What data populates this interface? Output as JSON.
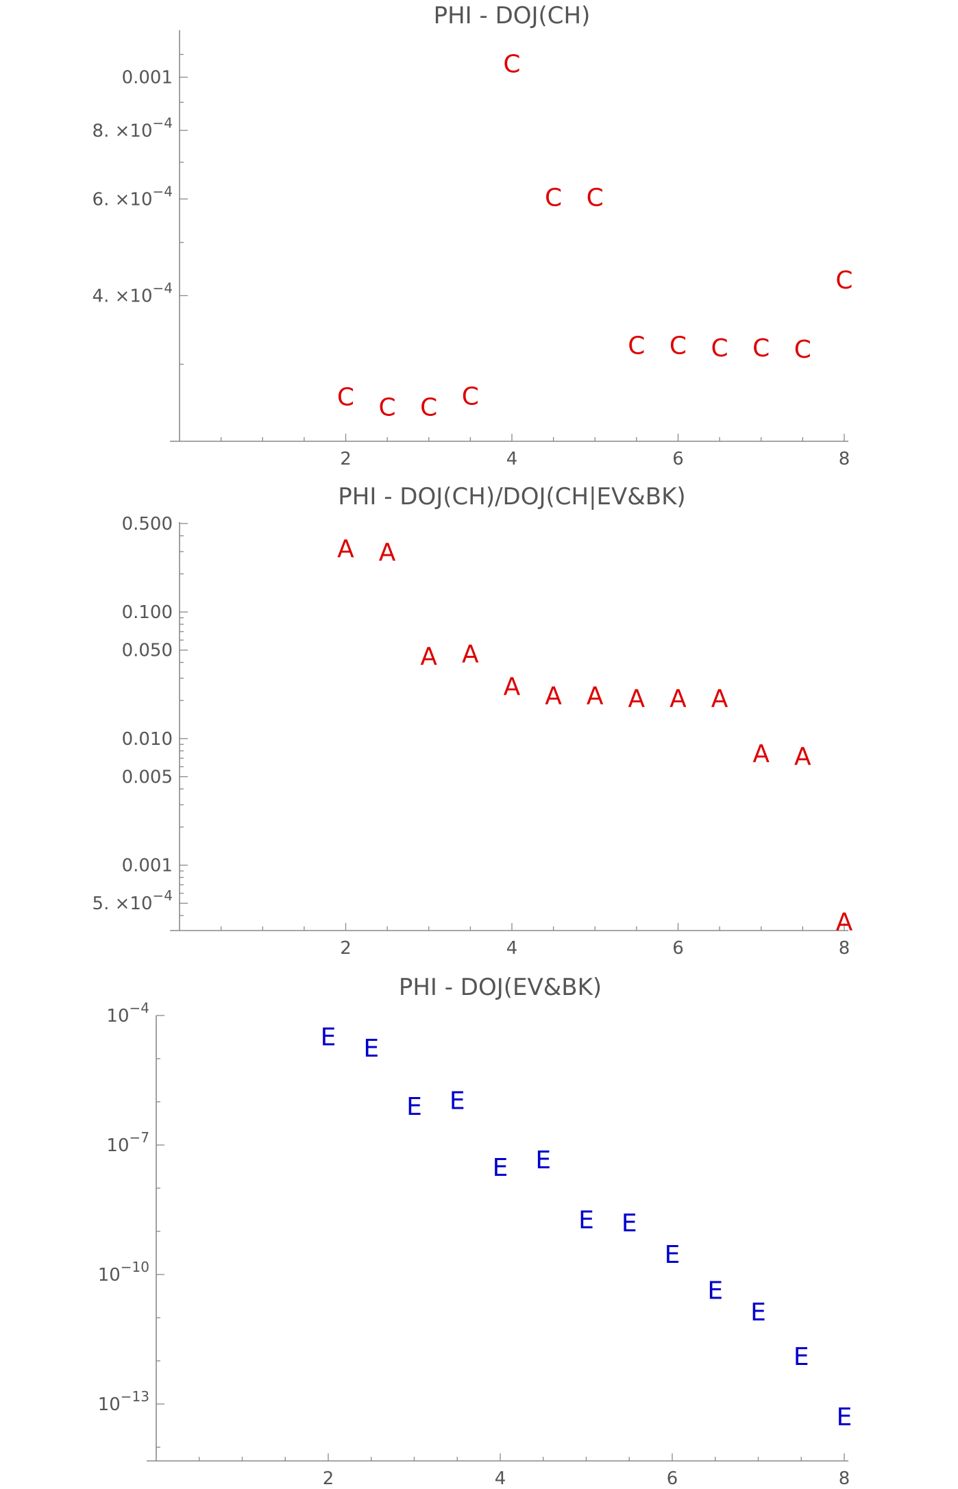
{
  "chart_data": [
    {
      "type": "scatter",
      "title": "PHI - DOJ(CH)",
      "xlabel": "",
      "ylabel": "",
      "yscale": "log",
      "xlim": [
        0,
        8
      ],
      "ylim": [
        0.00023,
        0.00115
      ],
      "marker": "C",
      "color": "#dd0000",
      "x_ticks": [
        {
          "value": 2,
          "label": "2"
        },
        {
          "value": 4,
          "label": "4"
        },
        {
          "value": 6,
          "label": "6"
        },
        {
          "value": 8,
          "label": "8"
        }
      ],
      "y_ticks": [
        {
          "value": 0.001,
          "label": "0.001"
        },
        {
          "value": 0.0008,
          "mant": "8.",
          "times": "×",
          "base": "10",
          "exp": "−4"
        },
        {
          "value": 0.0006,
          "mant": "6.",
          "times": "×",
          "base": "10",
          "exp": "−4"
        },
        {
          "value": 0.0004,
          "mant": "4.",
          "times": "×",
          "base": "10",
          "exp": "−4"
        }
      ],
      "minor_y": [
        0.0003,
        0.0005,
        0.0007,
        0.0009,
        0.0011
      ],
      "points": [
        {
          "x": 2.0,
          "y": 0.000262
        },
        {
          "x": 2.5,
          "y": 0.000251
        },
        {
          "x": 3.0,
          "y": 0.000251
        },
        {
          "x": 3.5,
          "y": 0.000263
        },
        {
          "x": 4.0,
          "y": 0.00106
        },
        {
          "x": 4.5,
          "y": 0.000605
        },
        {
          "x": 5.0,
          "y": 0.000605
        },
        {
          "x": 5.5,
          "y": 0.000325
        },
        {
          "x": 6.0,
          "y": 0.000325
        },
        {
          "x": 6.5,
          "y": 0.000322
        },
        {
          "x": 7.0,
          "y": 0.000322
        },
        {
          "x": 7.5,
          "y": 0.00032
        },
        {
          "x": 8.0,
          "y": 0.000428
        }
      ]
    },
    {
      "type": "scatter",
      "title": "PHI - DOJ(CH)/DOJ(CH|EV&BK)",
      "xlabel": "",
      "ylabel": "",
      "yscale": "log",
      "xlim": [
        0,
        8
      ],
      "ylim": [
        0.00032,
        0.5
      ],
      "marker": "A",
      "color": "#dd0000",
      "x_ticks": [
        {
          "value": 2,
          "label": "2"
        },
        {
          "value": 4,
          "label": "4"
        },
        {
          "value": 6,
          "label": "6"
        },
        {
          "value": 8,
          "label": "8"
        }
      ],
      "y_ticks": [
        {
          "value": 0.5,
          "label": "0.500"
        },
        {
          "value": 0.1,
          "label": "0.100"
        },
        {
          "value": 0.05,
          "label": "0.050"
        },
        {
          "value": 0.01,
          "label": "0.010"
        },
        {
          "value": 0.005,
          "label": "0.005"
        },
        {
          "value": 0.001,
          "label": "0.001"
        },
        {
          "value": 0.0005,
          "mant": "5.",
          "times": "×",
          "base": "10",
          "exp": "−4"
        }
      ],
      "minor_y": [
        0.4,
        0.3,
        0.2,
        0.09,
        0.08,
        0.07,
        0.06,
        0.04,
        0.03,
        0.02,
        0.009,
        0.008,
        0.007,
        0.006,
        0.004,
        0.003,
        0.002,
        0.0009,
        0.0008,
        0.0007,
        0.0006,
        0.0004
      ],
      "points": [
        {
          "x": 2.0,
          "y": 0.32
        },
        {
          "x": 2.5,
          "y": 0.3
        },
        {
          "x": 3.0,
          "y": 0.045
        },
        {
          "x": 3.5,
          "y": 0.047
        },
        {
          "x": 4.0,
          "y": 0.026
        },
        {
          "x": 4.5,
          "y": 0.022
        },
        {
          "x": 5.0,
          "y": 0.022
        },
        {
          "x": 5.5,
          "y": 0.021
        },
        {
          "x": 6.0,
          "y": 0.021
        },
        {
          "x": 6.5,
          "y": 0.021
        },
        {
          "x": 7.0,
          "y": 0.0077
        },
        {
          "x": 7.5,
          "y": 0.0073
        },
        {
          "x": 8.0,
          "y": 0.00036
        }
      ]
    },
    {
      "type": "scatter",
      "title": "PHI - DOJ(EV&BK)",
      "xlabel": "",
      "ylabel": "",
      "yscale": "log",
      "xlim": [
        0,
        8
      ],
      "ylim": [
        1e-14,
        0.0001
      ],
      "marker": "E",
      "color": "#0000cc",
      "x_ticks": [
        {
          "value": 2,
          "label": "2"
        },
        {
          "value": 4,
          "label": "4"
        },
        {
          "value": 6,
          "label": "6"
        },
        {
          "value": 8,
          "label": "8"
        }
      ],
      "y_ticks": [
        {
          "value": 0.0001,
          "mant": "",
          "times": "",
          "base": "10",
          "exp": "−4"
        },
        {
          "value": 1e-07,
          "mant": "",
          "times": "",
          "base": "10",
          "exp": "−7"
        },
        {
          "value": 1e-10,
          "mant": "",
          "times": "",
          "base": "10",
          "exp": "−10"
        },
        {
          "value": 1e-13,
          "mant": "",
          "times": "",
          "base": "10",
          "exp": "−13"
        }
      ],
      "minor_y": [
        1e-05,
        1e-06,
        1e-08,
        1e-09,
        1e-11,
        1e-12,
        1e-14
      ],
      "points": [
        {
          "x": 2.0,
          "y": 3.3e-05
        },
        {
          "x": 2.5,
          "y": 1.8e-05
        },
        {
          "x": 3.0,
          "y": 8e-07
        },
        {
          "x": 3.5,
          "y": 1.1e-06
        },
        {
          "x": 4.0,
          "y": 3.1e-08
        },
        {
          "x": 4.5,
          "y": 4.6e-08
        },
        {
          "x": 5.0,
          "y": 1.9e-09
        },
        {
          "x": 5.5,
          "y": 1.6e-09
        },
        {
          "x": 6.0,
          "y": 3e-10
        },
        {
          "x": 6.5,
          "y": 4.4e-11
        },
        {
          "x": 7.0,
          "y": 1.4e-11
        },
        {
          "x": 7.5,
          "y": 1.3e-12
        },
        {
          "x": 8.0,
          "y": 5.2e-14
        }
      ]
    }
  ]
}
